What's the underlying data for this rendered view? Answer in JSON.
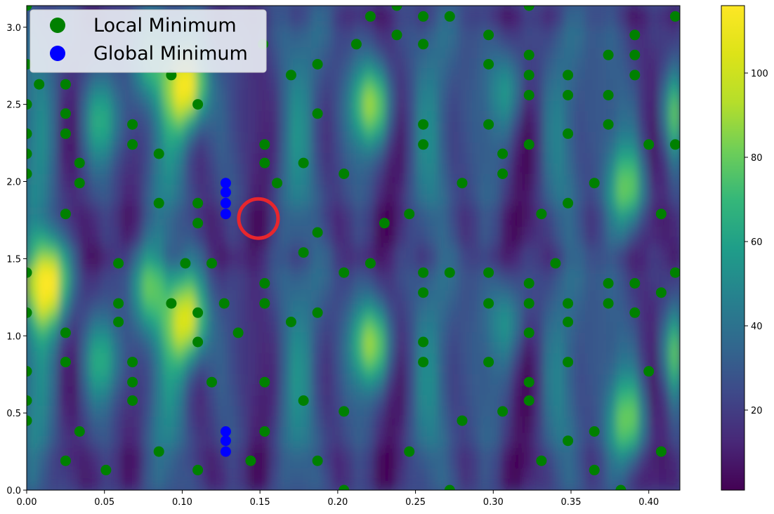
{
  "chart_data": {
    "type": "heatmap",
    "title": "",
    "xlabel": "",
    "ylabel": "",
    "xlim": [
      0,
      0.42
    ],
    "ylim": [
      0,
      3.14
    ],
    "grid": false,
    "legend_location": "top-left",
    "colormap": "viridis",
    "x_ticks": [
      {
        "value": 0.0,
        "label": "0.00"
      },
      {
        "value": 0.05,
        "label": "0.05"
      },
      {
        "value": 0.1,
        "label": "0.10"
      },
      {
        "value": 0.15,
        "label": "0.15"
      },
      {
        "value": 0.2,
        "label": "0.20"
      },
      {
        "value": 0.25,
        "label": "0.25"
      },
      {
        "value": 0.3,
        "label": "0.30"
      },
      {
        "value": 0.35,
        "label": "0.35"
      },
      {
        "value": 0.4,
        "label": "0.40"
      }
    ],
    "y_ticks": [
      {
        "value": 0.0,
        "label": "0.0"
      },
      {
        "value": 0.5,
        "label": "0.5"
      },
      {
        "value": 1.0,
        "label": "1.0"
      },
      {
        "value": 1.5,
        "label": "1.5"
      },
      {
        "value": 2.0,
        "label": "2.0"
      },
      {
        "value": 2.5,
        "label": "2.5"
      },
      {
        "value": 3.0,
        "label": "3.0"
      }
    ],
    "colorbar": {
      "min": 1,
      "max": 116,
      "ticks": [
        {
          "value": 20,
          "label": "20"
        },
        {
          "value": 40,
          "label": "40"
        },
        {
          "value": 60,
          "label": "60"
        },
        {
          "value": 80,
          "label": "80"
        },
        {
          "value": 100,
          "label": "100"
        }
      ]
    },
    "series": [
      {
        "name": "Local Minimum",
        "type": "scatter",
        "color": "#008000",
        "points": [
          [
            0.0,
            3.14
          ],
          [
            0.0,
            2.76
          ],
          [
            0.0,
            2.5
          ],
          [
            0.0,
            2.31
          ],
          [
            0.0,
            2.18
          ],
          [
            0.0,
            2.05
          ],
          [
            0.0,
            1.41
          ],
          [
            0.0,
            1.15
          ],
          [
            0.0,
            0.77
          ],
          [
            0.0,
            0.58
          ],
          [
            0.0,
            0.45
          ],
          [
            0.008,
            2.63
          ],
          [
            0.025,
            2.63
          ],
          [
            0.025,
            2.44
          ],
          [
            0.025,
            2.31
          ],
          [
            0.025,
            1.79
          ],
          [
            0.025,
            1.02
          ],
          [
            0.025,
            0.83
          ],
          [
            0.025,
            0.19
          ],
          [
            0.034,
            2.12
          ],
          [
            0.034,
            1.99
          ],
          [
            0.034,
            0.38
          ],
          [
            0.051,
            0.13
          ],
          [
            0.059,
            1.47
          ],
          [
            0.059,
            1.21
          ],
          [
            0.059,
            1.09
          ],
          [
            0.068,
            2.37
          ],
          [
            0.068,
            2.24
          ],
          [
            0.068,
            0.83
          ],
          [
            0.068,
            0.7
          ],
          [
            0.068,
            0.58
          ],
          [
            0.085,
            2.18
          ],
          [
            0.085,
            1.86
          ],
          [
            0.085,
            0.25
          ],
          [
            0.093,
            2.69
          ],
          [
            0.093,
            1.21
          ],
          [
            0.102,
            1.47
          ],
          [
            0.11,
            2.5
          ],
          [
            0.11,
            1.86
          ],
          [
            0.11,
            1.73
          ],
          [
            0.11,
            1.15
          ],
          [
            0.11,
            0.96
          ],
          [
            0.11,
            0.13
          ],
          [
            0.119,
            1.47
          ],
          [
            0.119,
            0.7
          ],
          [
            0.127,
            1.21
          ],
          [
            0.136,
            1.02
          ],
          [
            0.144,
            0.19
          ],
          [
            0.152,
            2.89
          ],
          [
            0.153,
            2.24
          ],
          [
            0.153,
            2.12
          ],
          [
            0.153,
            1.34
          ],
          [
            0.153,
            1.21
          ],
          [
            0.153,
            0.7
          ],
          [
            0.153,
            0.38
          ],
          [
            0.161,
            1.99
          ],
          [
            0.17,
            2.69
          ],
          [
            0.17,
            1.09
          ],
          [
            0.178,
            2.12
          ],
          [
            0.178,
            1.54
          ],
          [
            0.178,
            0.58
          ],
          [
            0.187,
            2.76
          ],
          [
            0.187,
            2.44
          ],
          [
            0.187,
            1.67
          ],
          [
            0.187,
            1.15
          ],
          [
            0.187,
            0.19
          ],
          [
            0.204,
            2.05
          ],
          [
            0.204,
            1.41
          ],
          [
            0.204,
            0.51
          ],
          [
            0.204,
            0.0
          ],
          [
            0.212,
            2.89
          ],
          [
            0.221,
            3.07
          ],
          [
            0.221,
            1.47
          ],
          [
            0.23,
            1.73
          ],
          [
            0.238,
            3.14
          ],
          [
            0.238,
            2.95
          ],
          [
            0.246,
            1.79
          ],
          [
            0.246,
            0.25
          ],
          [
            0.255,
            3.07
          ],
          [
            0.255,
            2.89
          ],
          [
            0.255,
            2.37
          ],
          [
            0.255,
            2.24
          ],
          [
            0.255,
            1.41
          ],
          [
            0.255,
            1.28
          ],
          [
            0.255,
            0.96
          ],
          [
            0.255,
            0.83
          ],
          [
            0.272,
            3.07
          ],
          [
            0.272,
            1.41
          ],
          [
            0.272,
            0.0
          ],
          [
            0.28,
            1.99
          ],
          [
            0.28,
            0.45
          ],
          [
            0.297,
            2.95
          ],
          [
            0.297,
            2.76
          ],
          [
            0.297,
            2.37
          ],
          [
            0.297,
            1.41
          ],
          [
            0.297,
            1.21
          ],
          [
            0.297,
            0.83
          ],
          [
            0.306,
            2.18
          ],
          [
            0.306,
            2.05
          ],
          [
            0.306,
            0.51
          ],
          [
            0.323,
            3.14
          ],
          [
            0.323,
            2.82
          ],
          [
            0.323,
            2.69
          ],
          [
            0.323,
            2.56
          ],
          [
            0.323,
            2.24
          ],
          [
            0.323,
            1.34
          ],
          [
            0.323,
            1.21
          ],
          [
            0.323,
            1.02
          ],
          [
            0.323,
            0.7
          ],
          [
            0.323,
            0.58
          ],
          [
            0.331,
            1.79
          ],
          [
            0.331,
            0.19
          ],
          [
            0.34,
            1.47
          ],
          [
            0.348,
            2.69
          ],
          [
            0.348,
            2.56
          ],
          [
            0.348,
            2.31
          ],
          [
            0.348,
            1.86
          ],
          [
            0.348,
            1.21
          ],
          [
            0.348,
            1.09
          ],
          [
            0.348,
            0.83
          ],
          [
            0.348,
            0.32
          ],
          [
            0.365,
            1.99
          ],
          [
            0.365,
            0.38
          ],
          [
            0.365,
            0.13
          ],
          [
            0.374,
            2.82
          ],
          [
            0.374,
            2.56
          ],
          [
            0.374,
            2.37
          ],
          [
            0.374,
            1.34
          ],
          [
            0.374,
            1.21
          ],
          [
            0.382,
            0.0
          ],
          [
            0.391,
            2.95
          ],
          [
            0.391,
            2.82
          ],
          [
            0.391,
            2.69
          ],
          [
            0.391,
            1.34
          ],
          [
            0.391,
            1.15
          ],
          [
            0.4,
            2.24
          ],
          [
            0.4,
            0.77
          ],
          [
            0.408,
            1.79
          ],
          [
            0.408,
            1.28
          ],
          [
            0.408,
            0.25
          ],
          [
            0.417,
            3.07
          ],
          [
            0.417,
            2.24
          ],
          [
            0.417,
            1.41
          ]
        ]
      },
      {
        "name": "Global Minimum",
        "type": "scatter",
        "color": "#0000ff",
        "points": [
          [
            0.128,
            1.99
          ],
          [
            0.128,
            1.93
          ],
          [
            0.128,
            1.86
          ],
          [
            0.128,
            1.79
          ],
          [
            0.128,
            0.38
          ],
          [
            0.128,
            0.32
          ],
          [
            0.128,
            0.25
          ]
        ]
      }
    ],
    "annotations": [
      {
        "type": "circle",
        "color": "#e8262d",
        "x": 0.149,
        "y": 1.76
      }
    ]
  }
}
